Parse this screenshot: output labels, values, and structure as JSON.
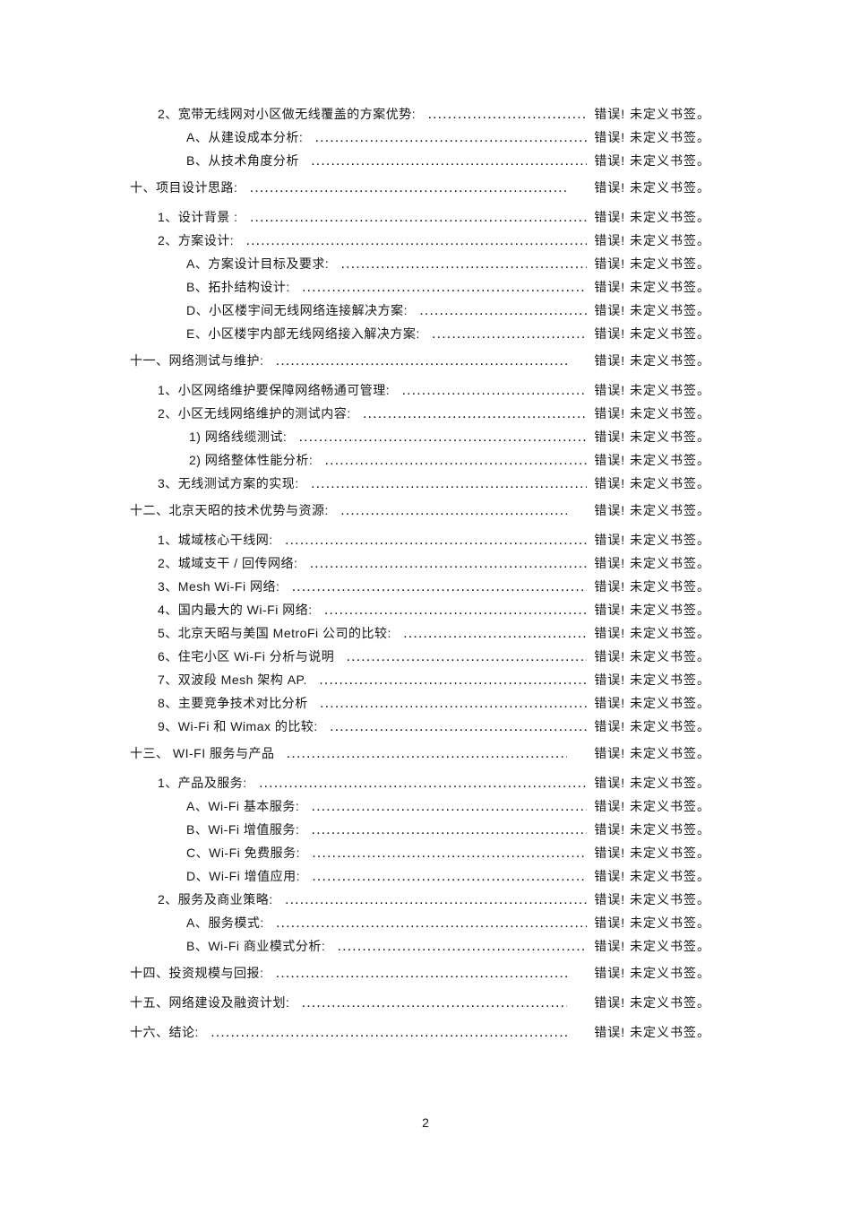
{
  "document": {
    "page_number": "2",
    "bookmark_error_text": "错误! 未定义书签。"
  },
  "toc": {
    "entries": [
      {
        "level": 2,
        "label": "2、宽带无线网对小区做无线覆盖的方案优势:"
      },
      {
        "level": 3,
        "label": "A、从建设成本分析:"
      },
      {
        "level": 3,
        "label": "B、从技术角度分析"
      },
      {
        "level": 1,
        "label": "十、项目设计思路:"
      },
      {
        "level": 2,
        "label": "1、设计背景 :"
      },
      {
        "level": 2,
        "label": "2、方案设计:"
      },
      {
        "level": 3,
        "label": "A、方案设计目标及要求:"
      },
      {
        "level": 3,
        "label": "B、拓扑结构设计:"
      },
      {
        "level": 3,
        "label": "D、小区楼宇间无线网络连接解决方案:"
      },
      {
        "level": 3,
        "label": "E、小区楼宇内部无线网络接入解决方案:"
      },
      {
        "level": 1,
        "label": "十一、网络测试与维护:"
      },
      {
        "level": 2,
        "label": "1、小区网络维护要保障网络畅通可管理:"
      },
      {
        "level": 2,
        "label": "2、小区无线网络维护的测试内容:"
      },
      {
        "level": 4,
        "label": "1) 网络线缆测试:"
      },
      {
        "level": 4,
        "label": "2) 网络整体性能分析:"
      },
      {
        "level": 2,
        "label": "3、无线测试方案的实现:"
      },
      {
        "level": 1,
        "label": "十二、北京天昭的技术优势与资源:"
      },
      {
        "level": 2,
        "label": "1、城域核心干线网:"
      },
      {
        "level": 2,
        "label": "2、城域支干 / 回传网络:"
      },
      {
        "level": 2,
        "label": "3、Mesh Wi-Fi 网络:"
      },
      {
        "level": 2,
        "label": "4、国内最大的 Wi-Fi 网络:"
      },
      {
        "level": 2,
        "label": "5、北京天昭与美国 MetroFi 公司的比较:"
      },
      {
        "level": 2,
        "label": "6、住宅小区 Wi-Fi 分析与说明"
      },
      {
        "level": 2,
        "label": "7、双波段 Mesh 架构 AP."
      },
      {
        "level": 2,
        "label": "8、主要竞争技术对比分析"
      },
      {
        "level": 2,
        "label": "9、Wi-Fi 和 Wimax 的比较:"
      },
      {
        "level": 1,
        "label": "十三、 WI-FI 服务与产品"
      },
      {
        "level": 2,
        "label": "1、产品及服务:"
      },
      {
        "level": 3,
        "label": "A、Wi-Fi 基本服务:"
      },
      {
        "level": 3,
        "label": "B、Wi-Fi 增值服务:"
      },
      {
        "level": 3,
        "label": "C、Wi-Fi 免费服务:"
      },
      {
        "level": 3,
        "label": "D、Wi-Fi 增值应用:"
      },
      {
        "level": 2,
        "label": "2、服务及商业策略:"
      },
      {
        "level": 3,
        "label": "A、服务模式:"
      },
      {
        "level": 3,
        "label": "B、Wi-Fi 商业模式分析:"
      },
      {
        "level": 1,
        "label": "十四、投资规模与回报:"
      },
      {
        "level": 1,
        "label": "十五、网络建设及融资计划:"
      },
      {
        "level": 1,
        "label": "十六、结论:"
      }
    ]
  }
}
